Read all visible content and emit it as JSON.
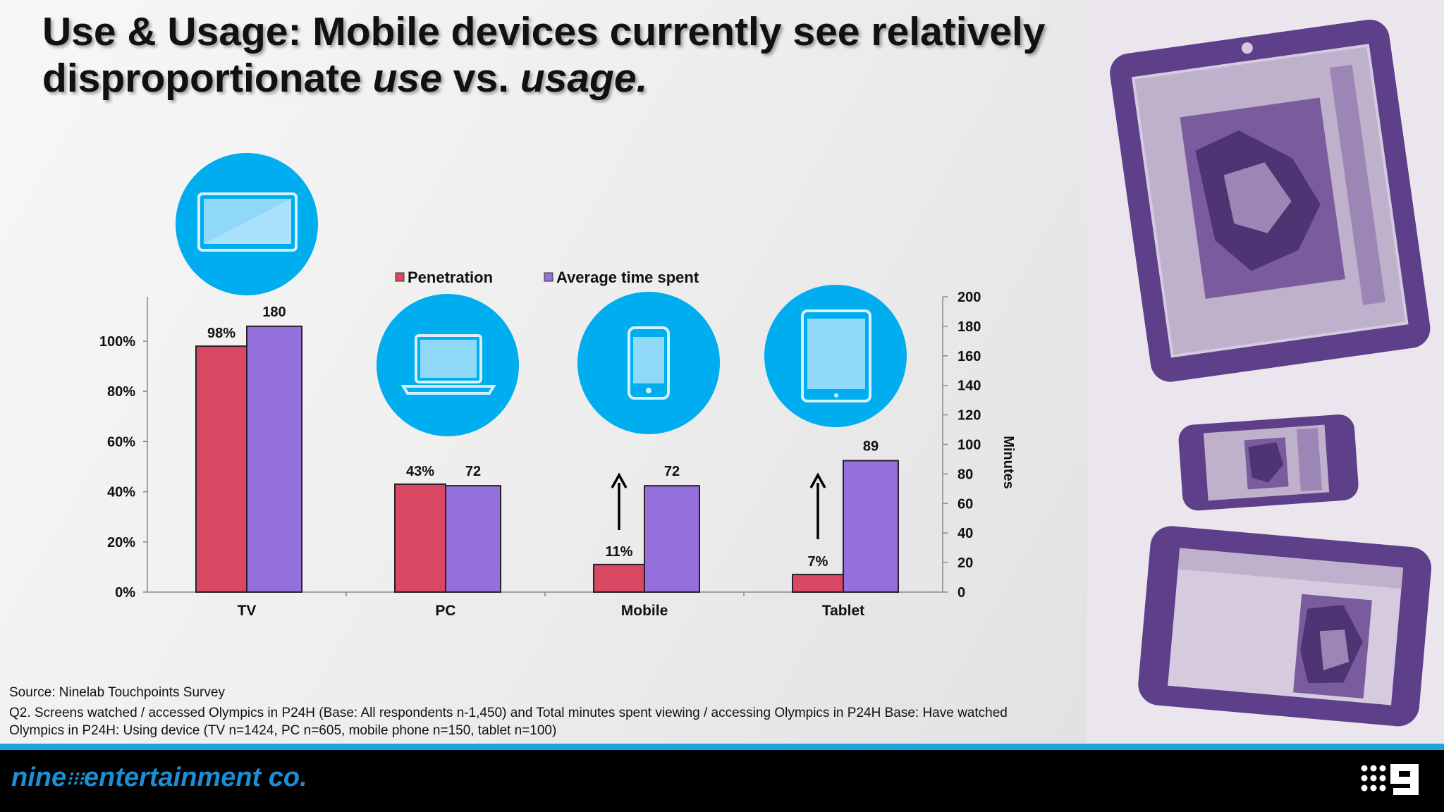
{
  "slide": {
    "title_line1": "Use & Usage: Mobile devices currently see relatively",
    "title_line2_a": "disproportionate ",
    "title_line2_b": "use",
    "title_line2_c": " vs. ",
    "title_line2_d": "usage."
  },
  "chart_data": {
    "type": "bar",
    "categories": [
      "TV",
      "PC",
      "Mobile",
      "Tablet"
    ],
    "series": [
      {
        "name": "Penetration",
        "values": [
          98,
          43,
          11,
          7
        ],
        "labels": [
          "98%",
          "43%",
          "11%",
          "7%"
        ],
        "color": "#d94862",
        "axis": "left"
      },
      {
        "name": "Average time spent",
        "values": [
          180,
          72,
          72,
          89
        ],
        "labels": [
          "180",
          "72",
          "72",
          "89"
        ],
        "color": "#9370db",
        "axis": "right"
      }
    ],
    "y_left": {
      "min": 0,
      "max": 100,
      "ticks": [
        "0%",
        "20%",
        "40%",
        "60%",
        "80%",
        "100%"
      ],
      "tick_values": [
        0,
        20,
        40,
        60,
        80,
        100
      ]
    },
    "y_right": {
      "min": 0,
      "max": 200,
      "label": "Minutes",
      "ticks": [
        "0",
        "20",
        "40",
        "60",
        "80",
        "100",
        "120",
        "140",
        "160",
        "180",
        "200"
      ],
      "tick_values": [
        0,
        20,
        40,
        60,
        80,
        100,
        120,
        140,
        160,
        180,
        200
      ]
    },
    "annotations": [
      "up-arrow above Mobile penetration",
      "up-arrow above Tablet penetration"
    ],
    "category_icons": [
      "tv-icon",
      "laptop-icon",
      "phone-icon",
      "tablet-icon"
    ],
    "legend_position": "top",
    "grid": false
  },
  "footer": {
    "source": "Source: Ninelab Touchpoints Survey",
    "q2_line1": "Q2. Screens watched / accessed Olympics in P24H (Base: All respondents n-1,450) and Total minutes spent viewing / accessing Olympics in P24H Base: Have watched",
    "q2_line2": "Olympics in P24H: Using device  (TV n=1424, PC n=605, mobile phone n=150, tablet n=100)"
  },
  "brand": {
    "name_a": "nine",
    "name_b": "entertainment co."
  },
  "colors": {
    "icon_circle": "#00adef",
    "footer_bar": "#000000",
    "stripe": "#1aa7e0",
    "device_art": "#5e3f8a"
  }
}
